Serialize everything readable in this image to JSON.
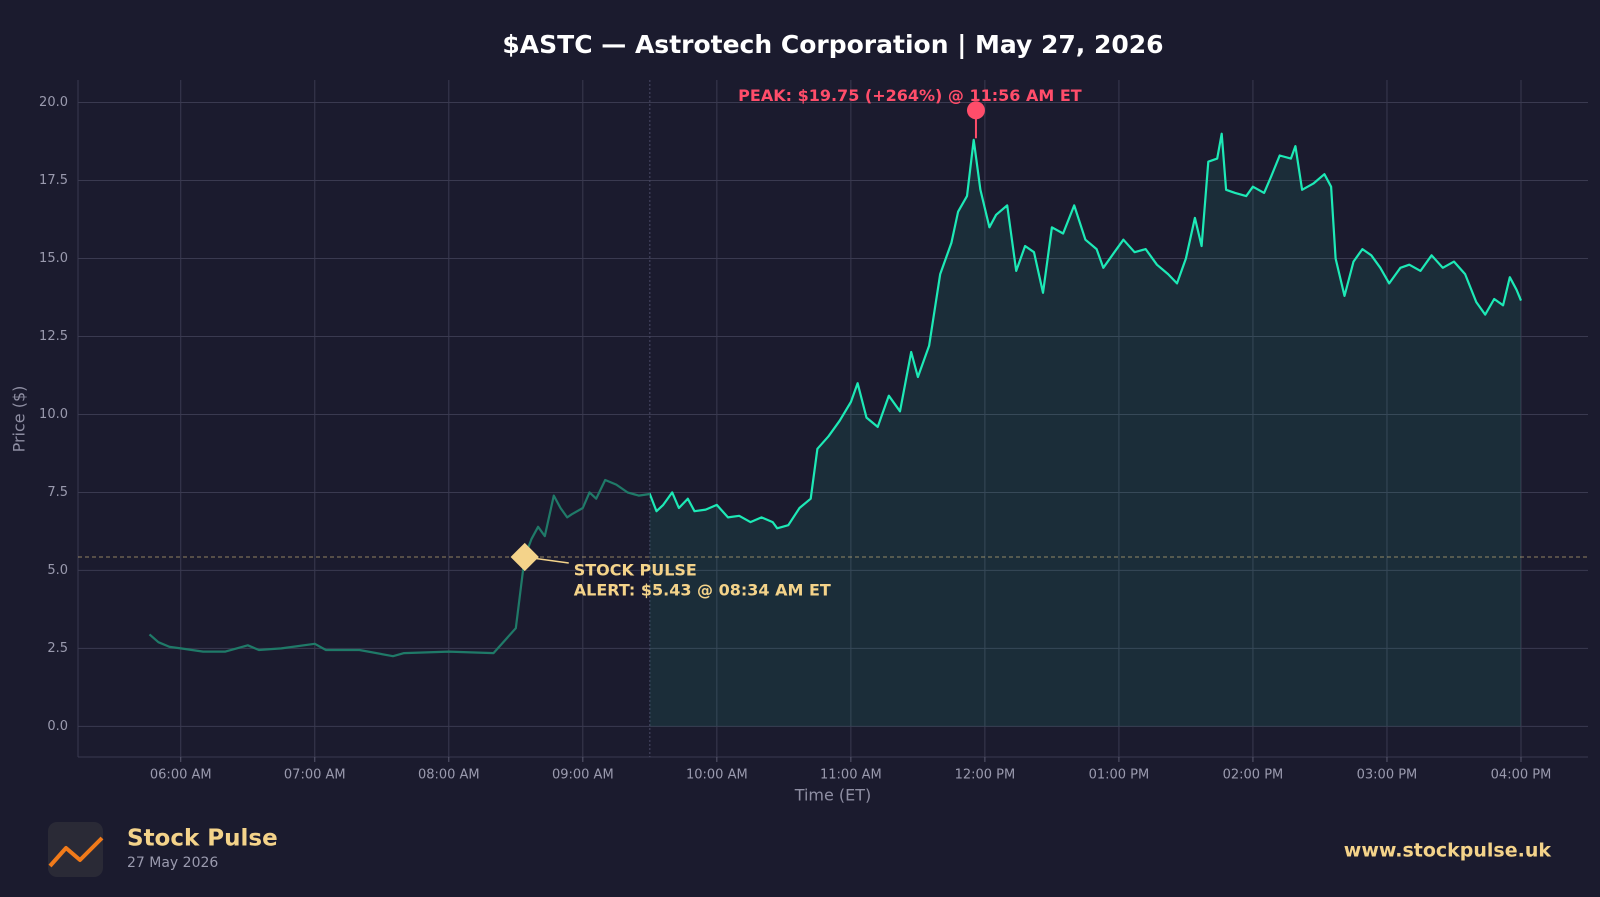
{
  "chart_data": {
    "type": "line",
    "title": "$ASTC — Astrotech Corporation  |  May 27, 2026",
    "x_label": "Time (ET)",
    "y_label": "Price ($)",
    "x": [
      "05:46",
      "05:50",
      "05:55",
      "06:00",
      "06:10",
      "06:20",
      "06:30",
      "06:35",
      "06:45",
      "07:00",
      "07:05",
      "07:20",
      "07:35",
      "07:40",
      "08:00",
      "08:20",
      "08:30",
      "08:32",
      "08:34",
      "08:37",
      "08:40",
      "08:43",
      "08:47",
      "08:50",
      "08:53",
      "08:55",
      "09:00",
      "09:03",
      "09:06",
      "09:10",
      "09:15",
      "09:20",
      "09:25",
      "09:30",
      "09:33",
      "09:36",
      "09:40",
      "09:43",
      "09:47",
      "09:50",
      "09:55",
      "10:00",
      "10:05",
      "10:10",
      "10:15",
      "10:20",
      "10:25",
      "10:27",
      "10:32",
      "10:37",
      "10:42",
      "10:45",
      "10:50",
      "10:55",
      "11:00",
      "11:03",
      "11:07",
      "11:12",
      "11:17",
      "11:22",
      "11:27",
      "11:30",
      "11:35",
      "11:40",
      "11:45",
      "11:48",
      "11:52",
      "11:55",
      "11:58",
      "12:02",
      "12:05",
      "12:10",
      "12:14",
      "12:18",
      "12:22",
      "12:26",
      "12:30",
      "12:35",
      "12:40",
      "12:45",
      "12:50",
      "12:53",
      "12:58",
      "13:02",
      "13:07",
      "13:12",
      "13:17",
      "13:22",
      "13:26",
      "13:30",
      "13:34",
      "13:37",
      "13:40",
      "13:44",
      "13:46",
      "13:48",
      "13:52",
      "13:57",
      "14:00",
      "14:05",
      "14:08",
      "14:12",
      "14:17",
      "14:19",
      "14:22",
      "14:27",
      "14:32",
      "14:35",
      "14:37",
      "14:41",
      "14:45",
      "14:49",
      "14:53",
      "14:57",
      "15:01",
      "15:06",
      "15:10",
      "15:15",
      "15:20",
      "15:25",
      "15:30",
      "15:35",
      "15:40",
      "15:44",
      "15:48",
      "15:52",
      "15:55",
      "15:58",
      "16:00"
    ],
    "values": [
      2.95,
      2.7,
      2.55,
      2.5,
      2.4,
      2.4,
      2.6,
      2.45,
      2.5,
      2.65,
      2.45,
      2.45,
      2.25,
      2.35,
      2.4,
      2.35,
      3.15,
      4.3,
      5.43,
      6.0,
      6.4,
      6.1,
      7.4,
      7.0,
      6.7,
      6.8,
      7.0,
      7.5,
      7.3,
      7.9,
      7.75,
      7.5,
      7.4,
      7.45,
      6.9,
      7.1,
      7.5,
      7.0,
      7.3,
      6.9,
      6.95,
      7.1,
      6.7,
      6.75,
      6.55,
      6.7,
      6.55,
      6.35,
      6.45,
      7.0,
      7.3,
      8.9,
      9.3,
      9.8,
      10.4,
      11.0,
      9.9,
      9.6,
      10.6,
      10.1,
      12.0,
      11.2,
      12.2,
      14.5,
      15.5,
      16.5,
      17.0,
      18.8,
      17.2,
      16.0,
      16.4,
      16.7,
      14.6,
      15.4,
      15.2,
      13.9,
      16.0,
      15.8,
      16.7,
      15.6,
      15.3,
      14.7,
      15.2,
      15.6,
      15.2,
      15.3,
      14.8,
      14.5,
      14.2,
      15.0,
      16.3,
      15.4,
      18.1,
      18.2,
      19.0,
      17.2,
      17.1,
      17.0,
      17.3,
      17.1,
      17.6,
      18.3,
      18.2,
      18.6,
      17.2,
      17.4,
      17.7,
      17.3,
      15.0,
      13.8,
      14.9,
      15.3,
      15.1,
      14.7,
      14.2,
      14.7,
      14.8,
      14.6,
      15.1,
      14.7,
      14.9,
      14.5,
      13.6,
      13.2,
      13.7,
      13.5,
      14.4,
      14.0,
      13.65
    ],
    "color": "#1de9b6",
    "premarket_color": "#1f7a68",
    "session_start": "09:30",
    "xlim": [
      "05:14",
      "16:30"
    ],
    "xticks": [
      {
        "value": "06:00",
        "label": "06:00 AM"
      },
      {
        "value": "07:00",
        "label": "07:00 AM"
      },
      {
        "value": "08:00",
        "label": "08:00 AM"
      },
      {
        "value": "09:00",
        "label": "09:00 AM"
      },
      {
        "value": "10:00",
        "label": "10:00 AM"
      },
      {
        "value": "11:00",
        "label": "11:00 AM"
      },
      {
        "value": "12:00",
        "label": "12:00 PM"
      },
      {
        "value": "13:00",
        "label": "01:00 PM"
      },
      {
        "value": "14:00",
        "label": "02:00 PM"
      },
      {
        "value": "15:00",
        "label": "03:00 PM"
      },
      {
        "value": "16:00",
        "label": "04:00 PM"
      }
    ],
    "ylim": [
      -0.98,
      20.72
    ],
    "yticks": [
      {
        "value": 0,
        "label": "0.0"
      },
      2.5,
      {
        "value": 5,
        "label": "5.0"
      },
      7.5,
      {
        "value": 10,
        "label": "10.0"
      },
      12.5,
      {
        "value": 15,
        "label": "15.0"
      },
      17.5,
      {
        "value": 20,
        "label": "20.0"
      }
    ],
    "grid": true,
    "annotations": [
      {
        "kind": "peak",
        "x": "11:56",
        "y": 19.75,
        "color": "#ff4d6a",
        "label": "PEAK: $19.75 (+264%) @ 11:56 AM ET"
      },
      {
        "kind": "alert",
        "x": "08:34",
        "y": 5.43,
        "color": "#f4d38a",
        "lines": [
          "STOCK PULSE",
          "ALERT: $5.43 @ 08:34 AM ET"
        ]
      }
    ]
  },
  "footer": {
    "brand": "Stock Pulse",
    "date": "27 May 2026",
    "url": "www.stockpulse.uk"
  }
}
